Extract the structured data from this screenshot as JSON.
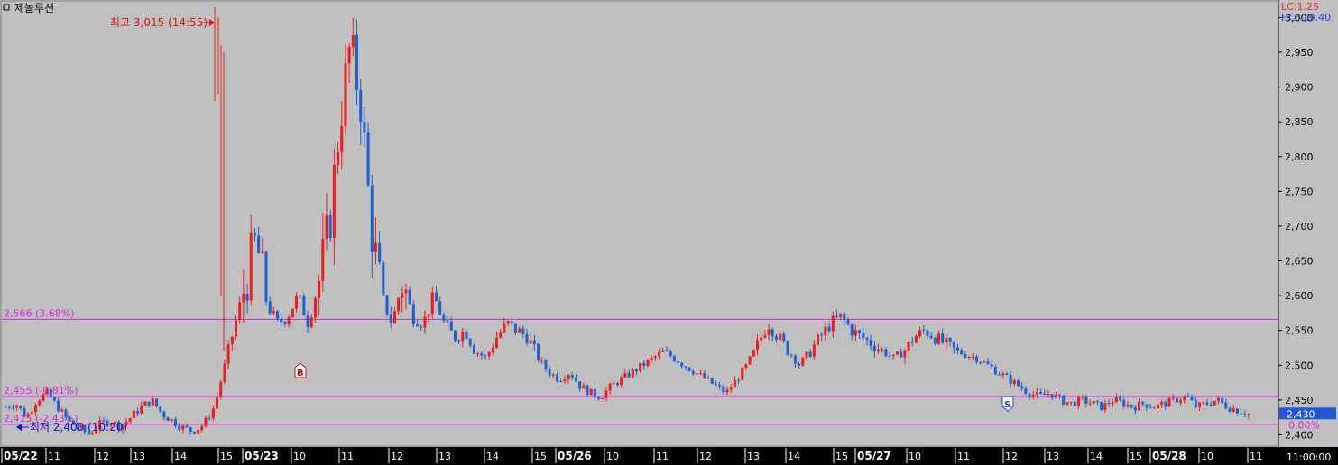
{
  "window": {
    "title": "제놀루션",
    "corner_right": "11:00:00"
  },
  "indicators": {
    "lc": "LC:1.25",
    "hc": "HC:-19.40",
    "lc_color": "#ff2020",
    "hc_color": "#2040ff"
  },
  "colors": {
    "up": "#ee1c1c",
    "down": "#1c5ed6",
    "ref_line": "#e020e0",
    "background": "#c0c0c0",
    "axis_bg": "#000000",
    "current_price_bg": "#1e58d8"
  },
  "current": {
    "price": 2430,
    "price_label": "2,430",
    "pct_label": "0.00%"
  },
  "annotations": {
    "high": {
      "text": "최고 3,015 (14:55)",
      "value": 3015
    },
    "low": {
      "text": "최저 2,400 (10:20)",
      "value": 2400
    },
    "buy_marker": "B",
    "sell_marker": "S"
  },
  "chart_data": {
    "type": "candlestick",
    "ylim": [
      2385,
      3020
    ],
    "y_ticks": [
      {
        "value": 3000,
        "label": "3,000"
      },
      {
        "value": 2950,
        "label": "2,950"
      },
      {
        "value": 2900,
        "label": "2,900"
      },
      {
        "value": 2850,
        "label": "2,850"
      },
      {
        "value": 2800,
        "label": "2,800"
      },
      {
        "value": 2750,
        "label": "2,750"
      },
      {
        "value": 2700,
        "label": "2,700"
      },
      {
        "value": 2650,
        "label": "2,650"
      },
      {
        "value": 2600,
        "label": "2,600"
      },
      {
        "value": 2550,
        "label": "2,550"
      },
      {
        "value": 2500,
        "label": "2,500"
      },
      {
        "value": 2450,
        "label": "2,450"
      },
      {
        "value": 2400,
        "label": "2,400"
      }
    ],
    "x_ticks": [
      {
        "label": "05/22",
        "day": true
      },
      {
        "label": "11",
        "day": false
      },
      {
        "label": "12",
        "day": false
      },
      {
        "label": "13",
        "day": false
      },
      {
        "label": "14",
        "day": false
      },
      {
        "label": "15",
        "day": false
      },
      {
        "label": "05/23",
        "day": true
      },
      {
        "label": "10",
        "day": false
      },
      {
        "label": "11",
        "day": false
      },
      {
        "label": "12",
        "day": false
      },
      {
        "label": "13",
        "day": false
      },
      {
        "label": "14",
        "day": false
      },
      {
        "label": "15",
        "day": false
      },
      {
        "label": "05/26",
        "day": true
      },
      {
        "label": "10",
        "day": false
      },
      {
        "label": "11",
        "day": false
      },
      {
        "label": "12",
        "day": false
      },
      {
        "label": "13",
        "day": false
      },
      {
        "label": "14",
        "day": false
      },
      {
        "label": "15",
        "day": false
      },
      {
        "label": "05/27",
        "day": true
      },
      {
        "label": "10",
        "day": false
      },
      {
        "label": "11",
        "day": false
      },
      {
        "label": "12",
        "day": false
      },
      {
        "label": "13",
        "day": false
      },
      {
        "label": "14",
        "day": false
      },
      {
        "label": "15",
        "day": false
      },
      {
        "label": "05/28",
        "day": true
      },
      {
        "label": "10",
        "day": false
      },
      {
        "label": "11",
        "day": false
      }
    ],
    "ref_lines": [
      {
        "value": 2566,
        "label": "2,566 (3.68%)"
      },
      {
        "value": 2455,
        "label": "2,455 (-0.81%)"
      },
      {
        "value": 2415,
        "label": "2,415 (-2.43%)"
      }
    ],
    "price_path": [
      2440,
      2445,
      2425,
      2450,
      2460,
      2440,
      2420,
      2410,
      2400,
      2415,
      2420,
      2412,
      2425,
      2440,
      2450,
      2430,
      2420,
      2410,
      2405,
      2415,
      2440,
      2500,
      2560,
      2620,
      2680,
      2590,
      2560,
      2570,
      2600,
      2560,
      2620,
      2700,
      2850,
      2960,
      2880,
      2700,
      2600,
      2560,
      2620,
      2570,
      2560,
      2600,
      2560,
      2540,
      2550,
      2520,
      2510,
      2540,
      2560,
      2550,
      2540,
      2510,
      2490,
      2480,
      2490,
      2470,
      2460,
      2455,
      2470,
      2480,
      2490,
      2500,
      2510,
      2520,
      2510,
      2500,
      2490,
      2480,
      2470,
      2460,
      2480,
      2500,
      2530,
      2560,
      2540,
      2520,
      2500,
      2520,
      2540,
      2560,
      2570,
      2550,
      2540,
      2530,
      2520,
      2510,
      2520,
      2540,
      2550,
      2540,
      2530,
      2520,
      2515,
      2510,
      2500,
      2490,
      2480,
      2470,
      2460,
      2455,
      2460,
      2450,
      2445,
      2450,
      2445,
      2440,
      2450,
      2445,
      2440,
      2445,
      2440,
      2445,
      2450,
      2455,
      2440,
      2445,
      2450,
      2440,
      2435,
      2430
    ],
    "open_price": 2440,
    "high": 3015,
    "low": 2400,
    "last": 2430
  }
}
